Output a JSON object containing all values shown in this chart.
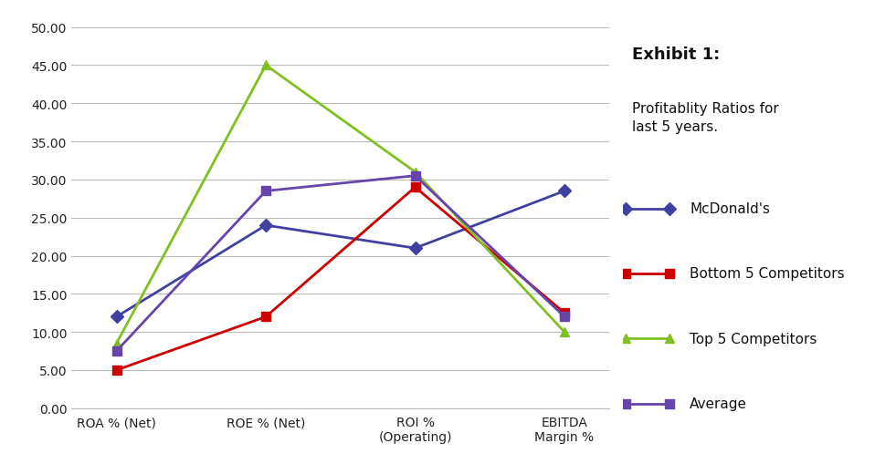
{
  "categories": [
    "ROA % (Net)",
    "ROE % (Net)",
    "ROI %\n(Operating)",
    "EBITDA\nMargin %"
  ],
  "series": {
    "McDonald's": {
      "values": [
        12.0,
        24.0,
        21.0,
        28.5
      ],
      "color": "#4040A0",
      "marker": "D"
    },
    "Bottom 5 Competitors": {
      "values": [
        5.0,
        12.0,
        29.0,
        12.5
      ],
      "color": "#CC0000",
      "marker": "s"
    },
    "Top 5 Competitors": {
      "values": [
        8.5,
        45.0,
        31.0,
        10.0
      ],
      "color": "#80C020",
      "marker": "^"
    },
    "Average": {
      "values": [
        7.5,
        28.5,
        30.5,
        12.0
      ],
      "color": "#6644AA",
      "marker": "s"
    }
  },
  "ylim": [
    0,
    50
  ],
  "yticks": [
    0,
    5,
    10,
    15,
    20,
    25,
    30,
    35,
    40,
    45,
    50
  ],
  "exhibit_title_bold": "Exhibit 1:",
  "exhibit_subtitle": "Profitablity Ratios for\nlast 5 years.",
  "background_color": "#FFFFFF",
  "grid_color": "#BBBBBB",
  "axis_fontsize": 10,
  "legend_fontsize": 11,
  "exhibit_title_fontsize": 13,
  "exhibit_subtitle_fontsize": 11
}
